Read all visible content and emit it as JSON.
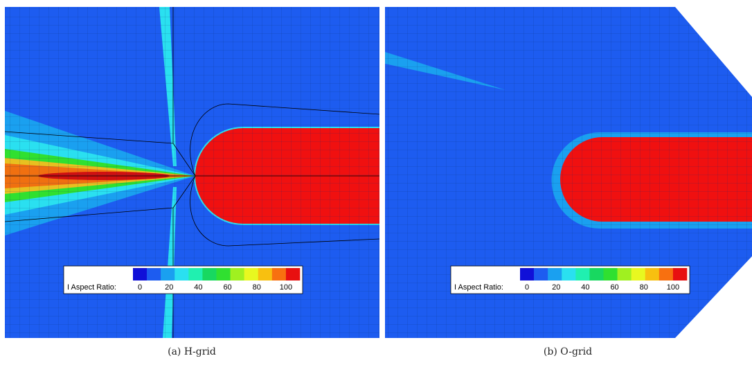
{
  "panels": [
    {
      "caption": "(a) H-grid",
      "legend": {
        "label": "I Aspect Ratio:",
        "ticks": [
          0,
          20,
          40,
          60,
          80,
          100
        ],
        "colors": [
          "#1010d8",
          "#1d5cf0",
          "#1aa0f0",
          "#2ae0f0",
          "#20f0b0",
          "#18d860",
          "#30e030",
          "#a0f020",
          "#e8f820",
          "#f8c010",
          "#f87010",
          "#e81010"
        ]
      }
    },
    {
      "caption": "(b) O-grid",
      "legend": {
        "label": "I Aspect Ratio:",
        "ticks": [
          0,
          20,
          40,
          60,
          80,
          100
        ],
        "colors": [
          "#1010d8",
          "#1d5cf0",
          "#1aa0f0",
          "#2ae0f0",
          "#20f0b0",
          "#18d860",
          "#30e030",
          "#a0f020",
          "#e8f820",
          "#f8c010",
          "#f87010",
          "#e81010"
        ]
      }
    }
  ]
}
